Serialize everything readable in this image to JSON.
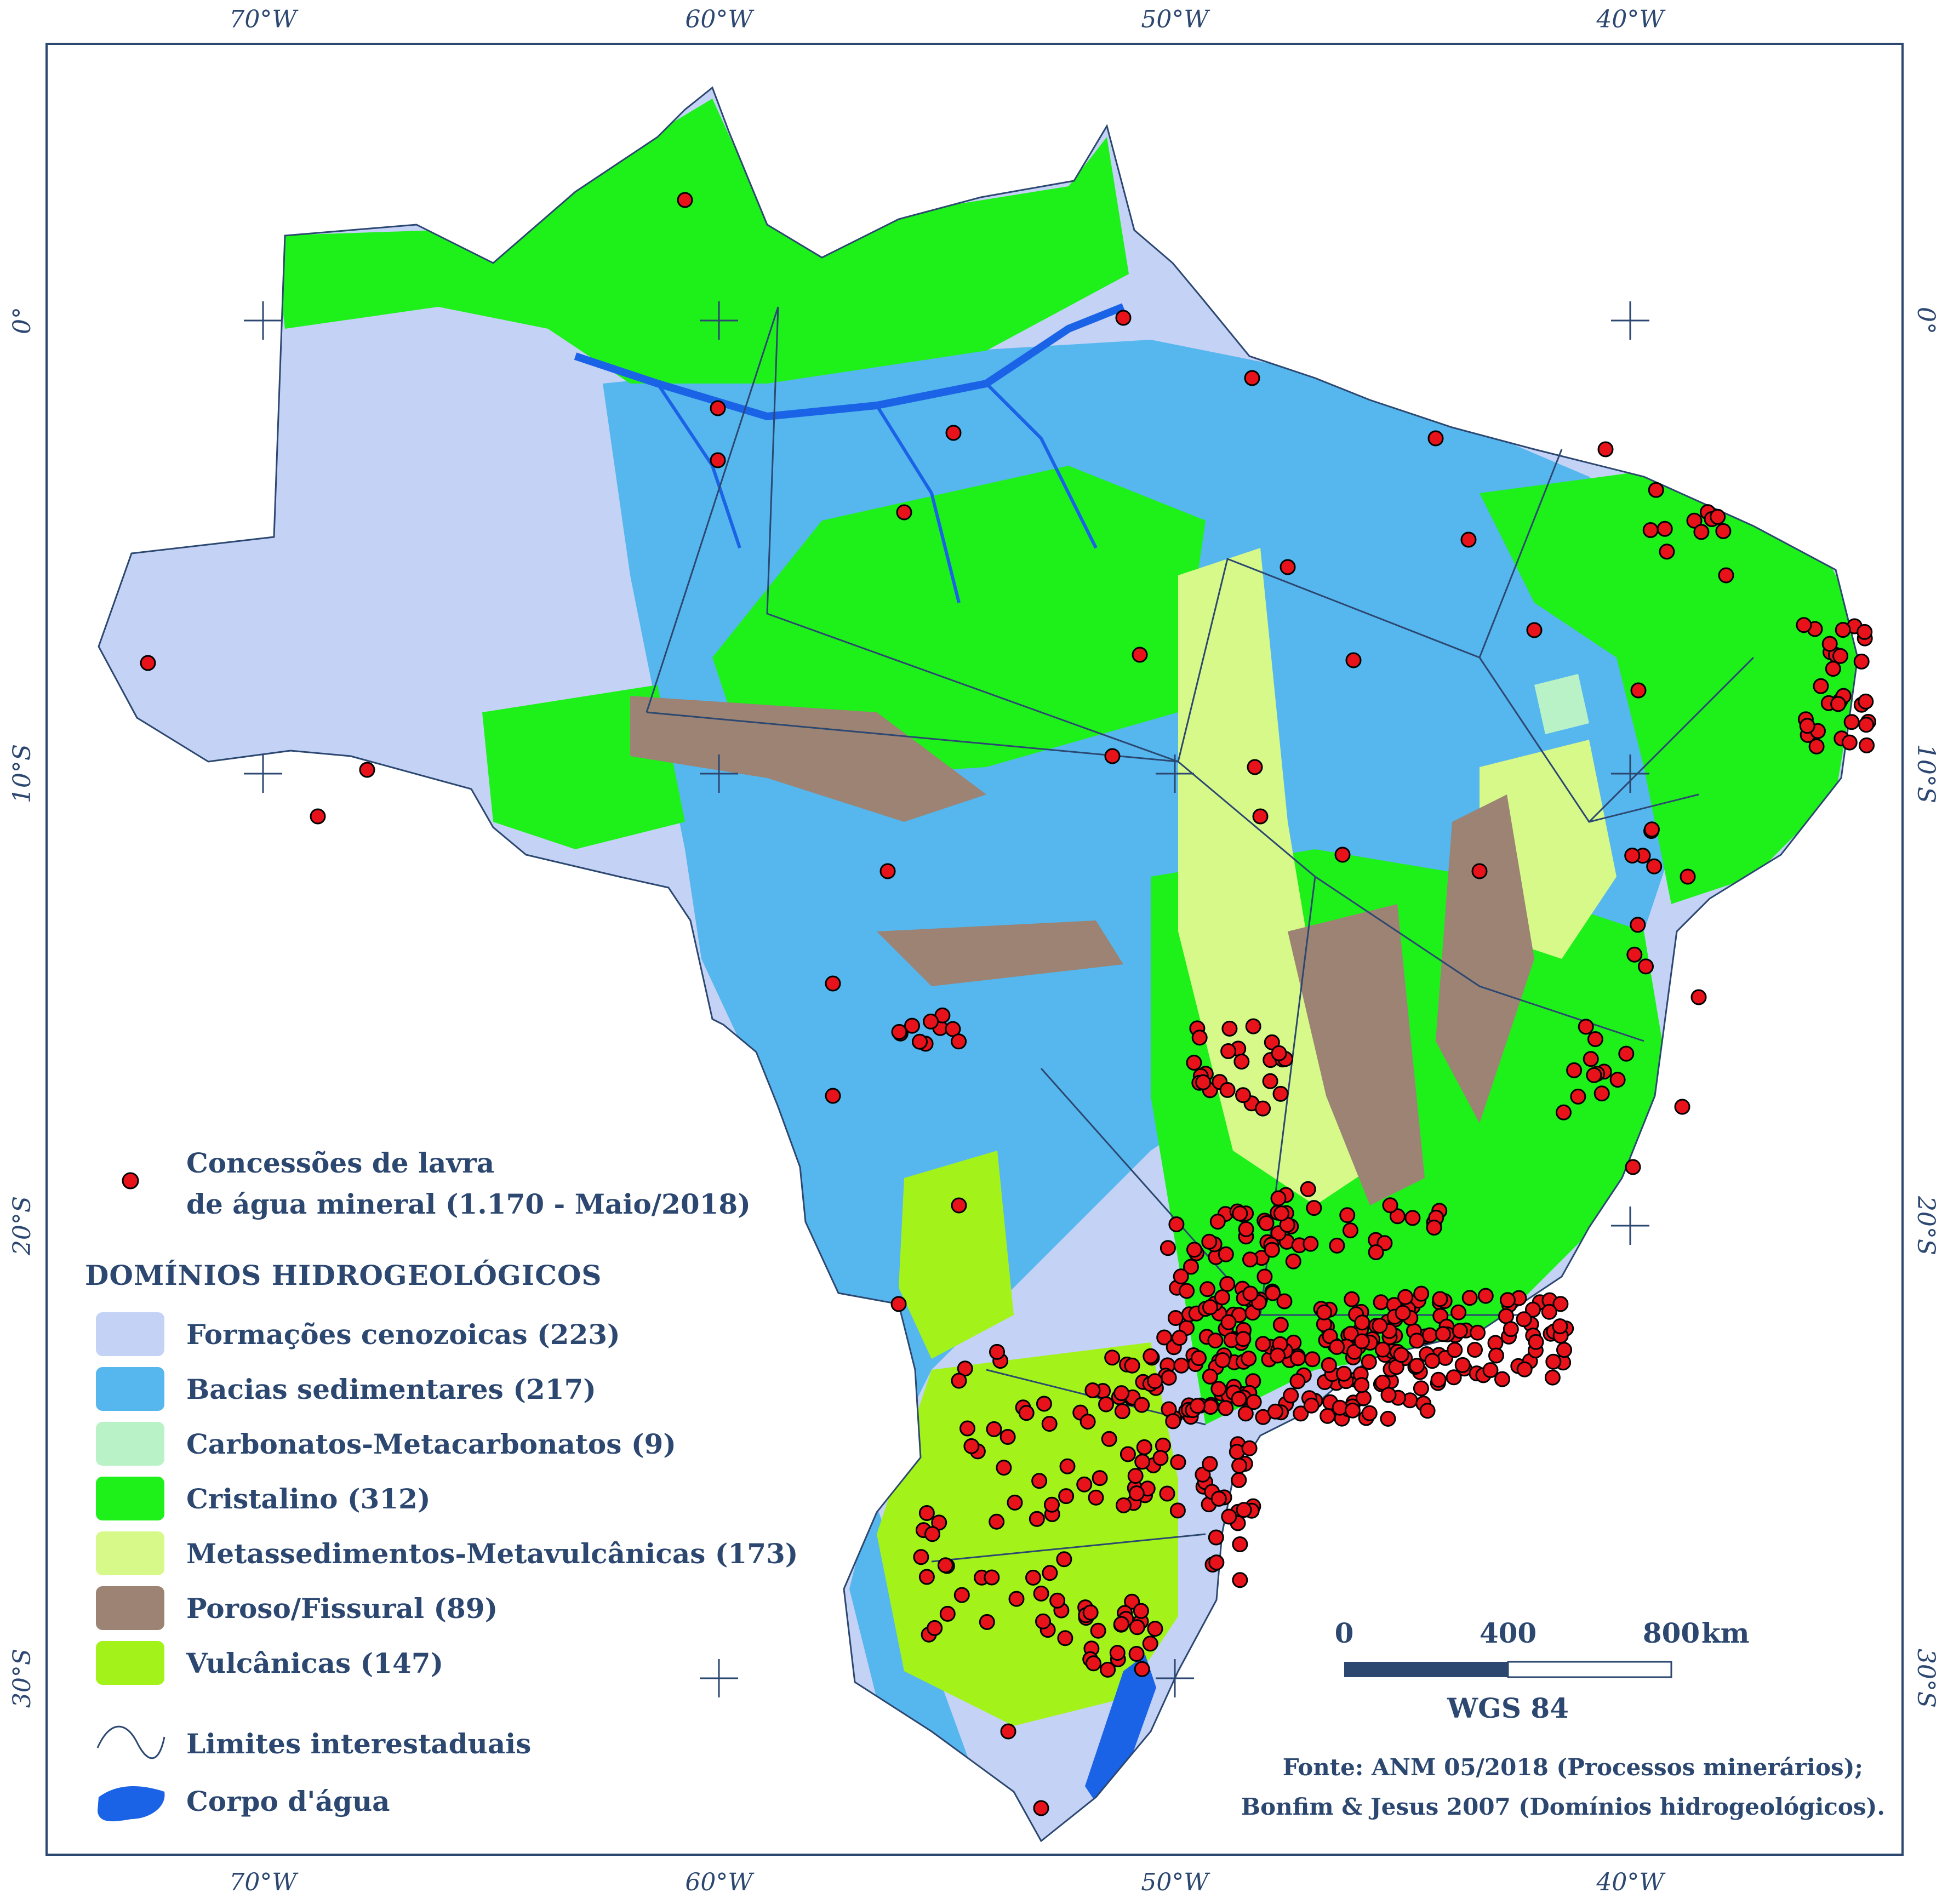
{
  "coordinate_labels": {
    "top": [
      "70°W",
      "60°W",
      "50°W",
      "40°W"
    ],
    "bottom": [
      "70°W",
      "60°W",
      "50°W",
      "40°W"
    ],
    "left": [
      "0°",
      "10°S",
      "20°S",
      "30°S"
    ],
    "right": [
      "0°",
      "10°S",
      "20°S",
      "30°S"
    ]
  },
  "legend": {
    "points_label_line1": "Concessões de lavra",
    "points_label_line2": "de água mineral (1.170 - Maio/2018)",
    "points_color": "#e8121b",
    "domains_title": "DOMÍNIOS HIDROGEOLÓGICOS",
    "domains": [
      {
        "label": "Formações cenozoicas (223)",
        "color": "#c3d2f5"
      },
      {
        "label": "Bacias sedimentares (217)",
        "color": "#56b6ee"
      },
      {
        "label": "Carbonatos-Metacarbonatos (9)",
        "color": "#b9f2c7"
      },
      {
        "label": "Cristalino (312)",
        "color": "#1ef01a"
      },
      {
        "label": "Metassedimentos-Metavulcânicas (173)",
        "color": "#d6f98a"
      },
      {
        "label": "Poroso/Fissural (89)",
        "color": "#9c8373"
      },
      {
        "label": "Vulcânicas (147)",
        "color": "#a3f31b"
      }
    ],
    "line_label": "Limites interestaduais",
    "water_label": "Corpo d'água",
    "water_color": "#1b63e6"
  },
  "scale_bar": {
    "ticks": [
      "0",
      "400",
      "800"
    ],
    "unit": "km",
    "datum": "WGS 84"
  },
  "credits": {
    "line1": "Fonte: ANM 05/2018 (Processos minerários);",
    "line2": "Bonfim & Jesus 2007 (Domínios hidrogeológicos)."
  }
}
